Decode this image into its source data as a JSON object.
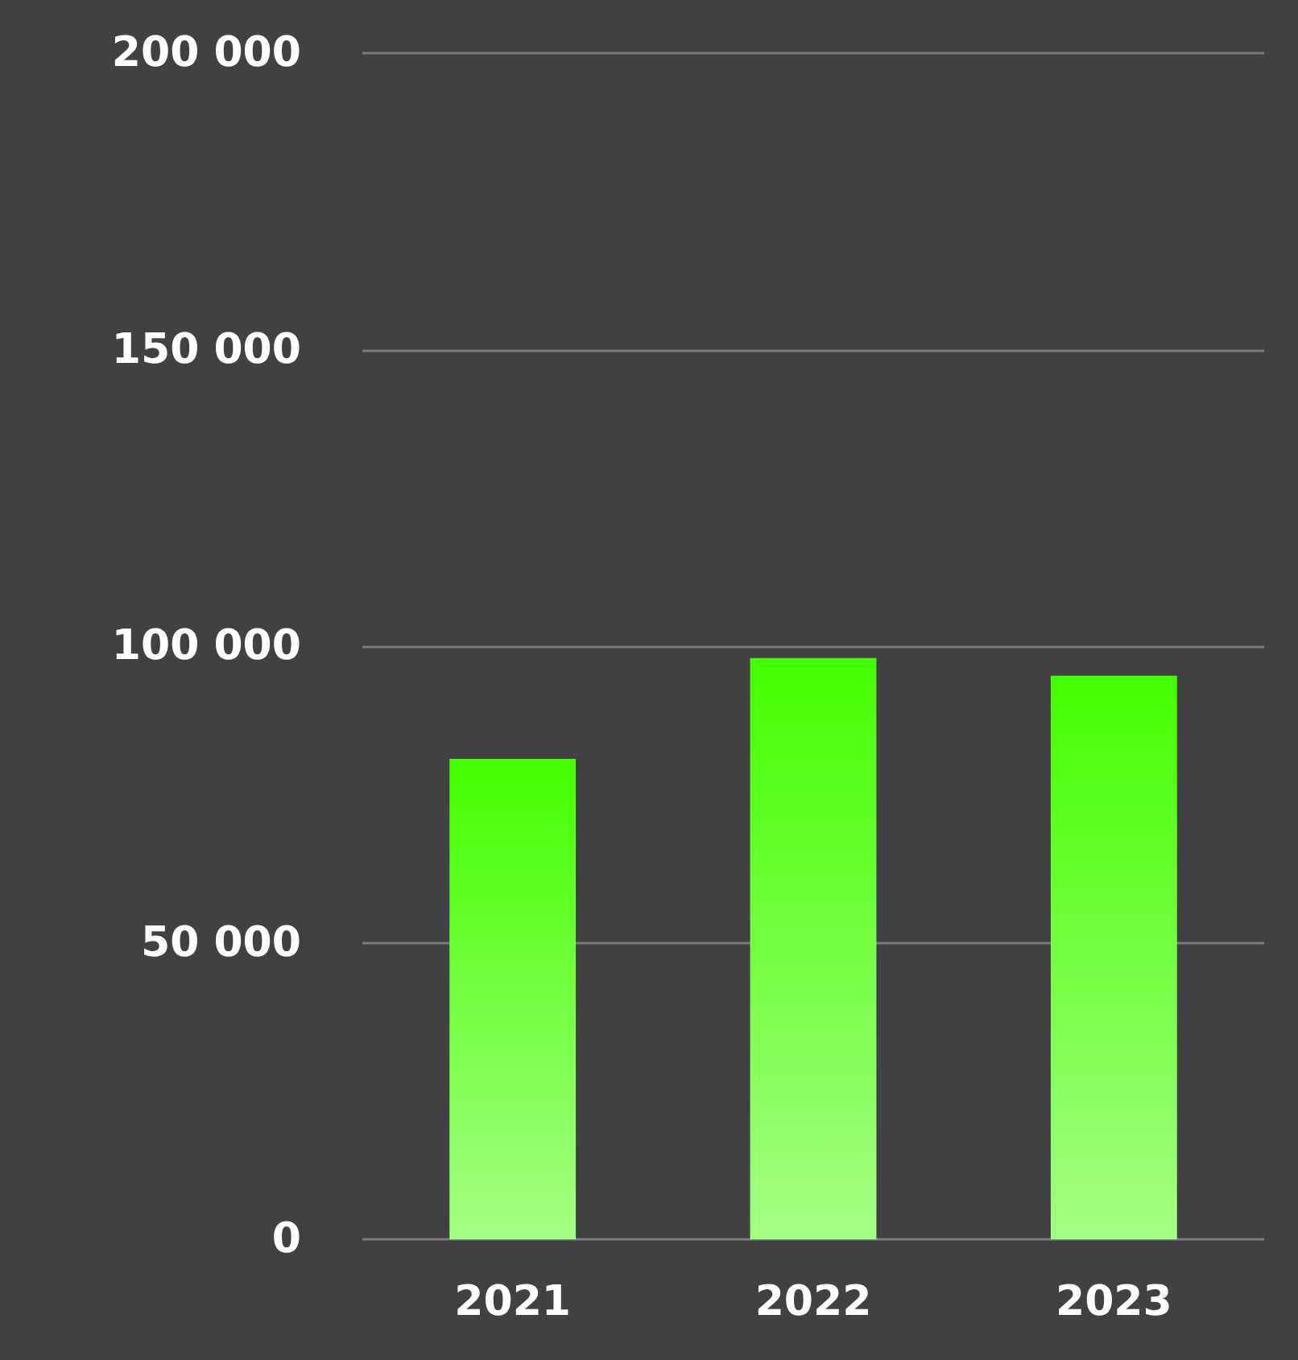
{
  "chart_data": {
    "type": "bar",
    "categories": [
      "2021",
      "2022",
      "2023"
    ],
    "values": [
      81000,
      98000,
      95000
    ],
    "color": "#44ff00",
    "ylim": [
      0,
      200000
    ],
    "yticks": [
      {
        "value": 0,
        "label": "0"
      },
      {
        "value": 50000,
        "label": "50 000"
      },
      {
        "value": 100000,
        "label": "100 000"
      },
      {
        "value": 150000,
        "label": "150 000"
      },
      {
        "value": 200000,
        "label": "200 000"
      }
    ],
    "grid": "y"
  }
}
